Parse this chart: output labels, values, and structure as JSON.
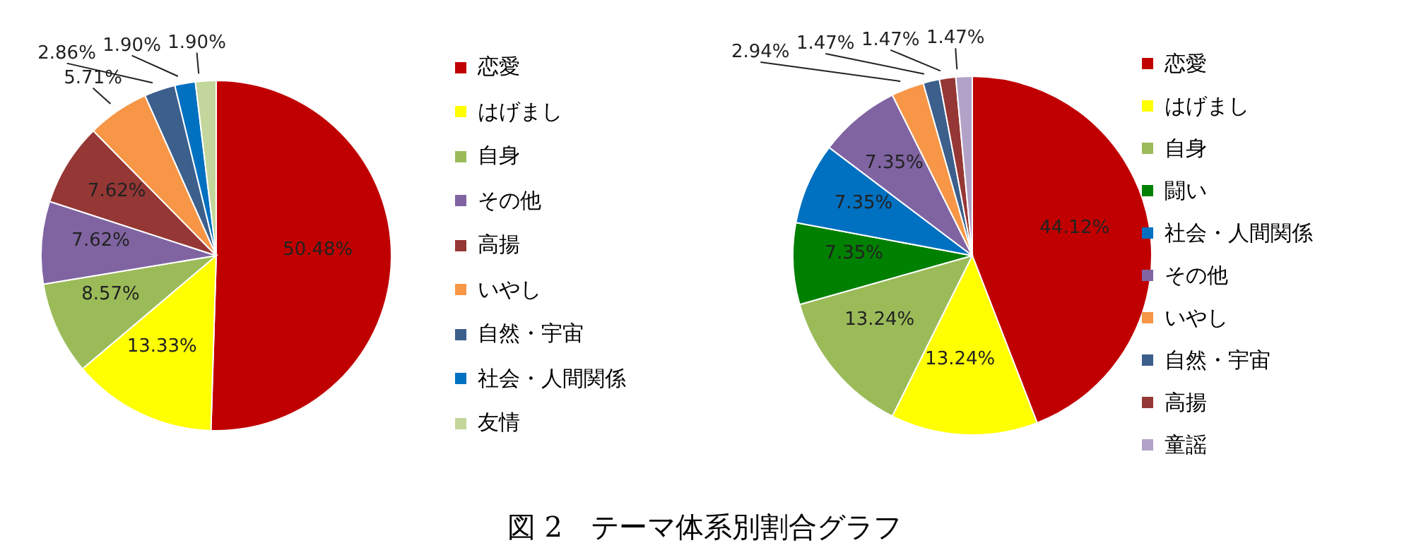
{
  "chart_data": [
    {
      "type": "pie",
      "categories": [
        "恋愛",
        "はげまし",
        "自身",
        "その他",
        "高揚",
        "いやし",
        "自然・宇宙",
        "社会・人間関係",
        "友情"
      ],
      "values": [
        50.48,
        13.33,
        8.57,
        7.62,
        7.62,
        5.71,
        2.86,
        1.9,
        1.9
      ],
      "value_labels": [
        "50.48%",
        "13.33%",
        "8.57%",
        "7.62%",
        "7.62%",
        "5.71%",
        "2.86%",
        "1.90%",
        "1.90%"
      ],
      "colors": [
        "#c00000",
        "#ffff00",
        "#9bbb59",
        "#8064a2",
        "#953735",
        "#f79646",
        "#3c5f8c",
        "#0070c0",
        "#c3d69b"
      ],
      "legend": "right",
      "annotations": [
        "図 2　テーマ体系別割合グラフ"
      ]
    },
    {
      "type": "pie",
      "categories": [
        "恋愛",
        "はげまし",
        "自身",
        "闘い",
        "社会・人間関係",
        "その他",
        "いやし",
        "自然・宇宙",
        "高揚",
        "童謡"
      ],
      "values": [
        44.12,
        13.24,
        13.24,
        7.35,
        7.35,
        7.35,
        2.94,
        1.47,
        1.47,
        1.47
      ],
      "value_labels": [
        "44.12%",
        "13.24%",
        "13.24%",
        "7.35%",
        "7.35%",
        "7.35%",
        "2.94%",
        "1.47%",
        "1.47%",
        "1.47%"
      ],
      "colors": [
        "#c00000",
        "#ffff00",
        "#9bbb59",
        "#008000",
        "#0070c0",
        "#8064a2",
        "#f79646",
        "#3c5f8c",
        "#953735",
        "#b3a2c7"
      ],
      "legend": "right"
    }
  ]
}
